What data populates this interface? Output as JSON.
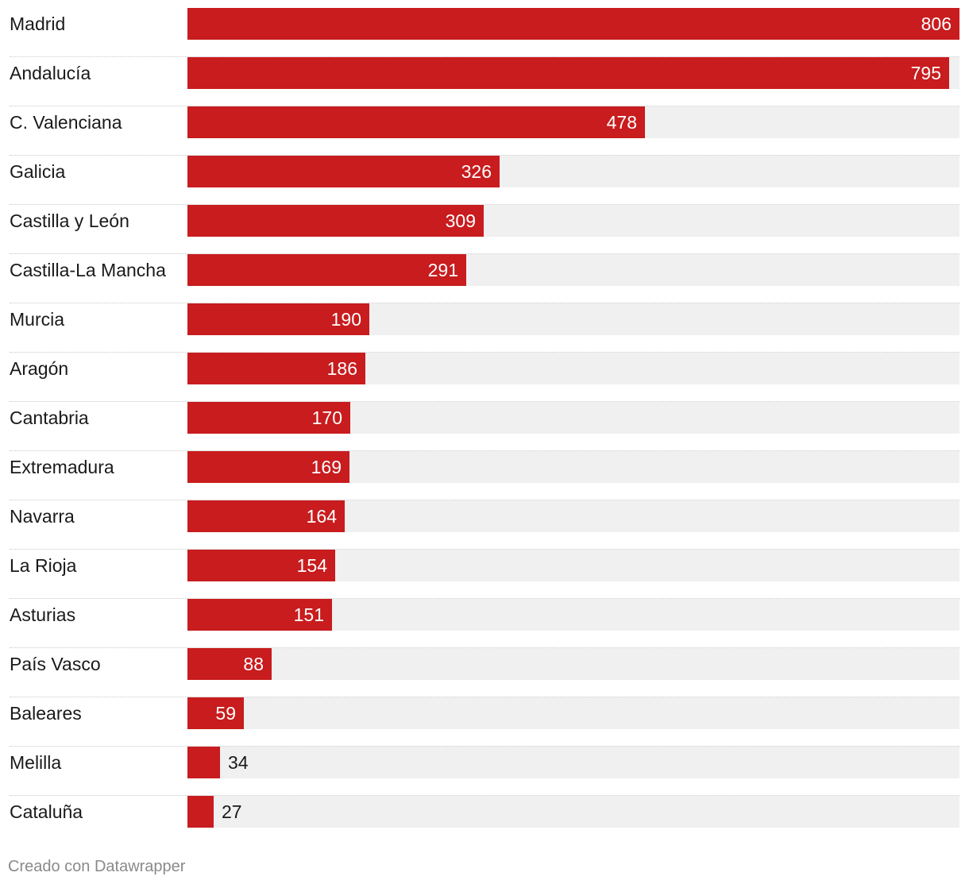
{
  "chart_data": {
    "type": "bar",
    "orientation": "horizontal",
    "categories": [
      "Madrid",
      "Andalucía",
      "C. Valenciana",
      "Galicia",
      "Castilla y León",
      "Castilla-La Mancha",
      "Murcia",
      "Aragón",
      "Cantabria",
      "Extremadura",
      "Navarra",
      "La Rioja",
      "Asturias",
      "País Vasco",
      "Baleares",
      "Melilla",
      "Cataluña"
    ],
    "values": [
      806,
      795,
      478,
      326,
      309,
      291,
      190,
      186,
      170,
      169,
      164,
      154,
      151,
      88,
      59,
      34,
      27
    ],
    "xlim": [
      0,
      806
    ],
    "title": "",
    "xlabel": "",
    "ylabel": "",
    "grid": false,
    "bar_color": "#c81c1e",
    "track_color": "#f0f0f0"
  },
  "footer": {
    "credit": "Creado con Datawrapper"
  }
}
